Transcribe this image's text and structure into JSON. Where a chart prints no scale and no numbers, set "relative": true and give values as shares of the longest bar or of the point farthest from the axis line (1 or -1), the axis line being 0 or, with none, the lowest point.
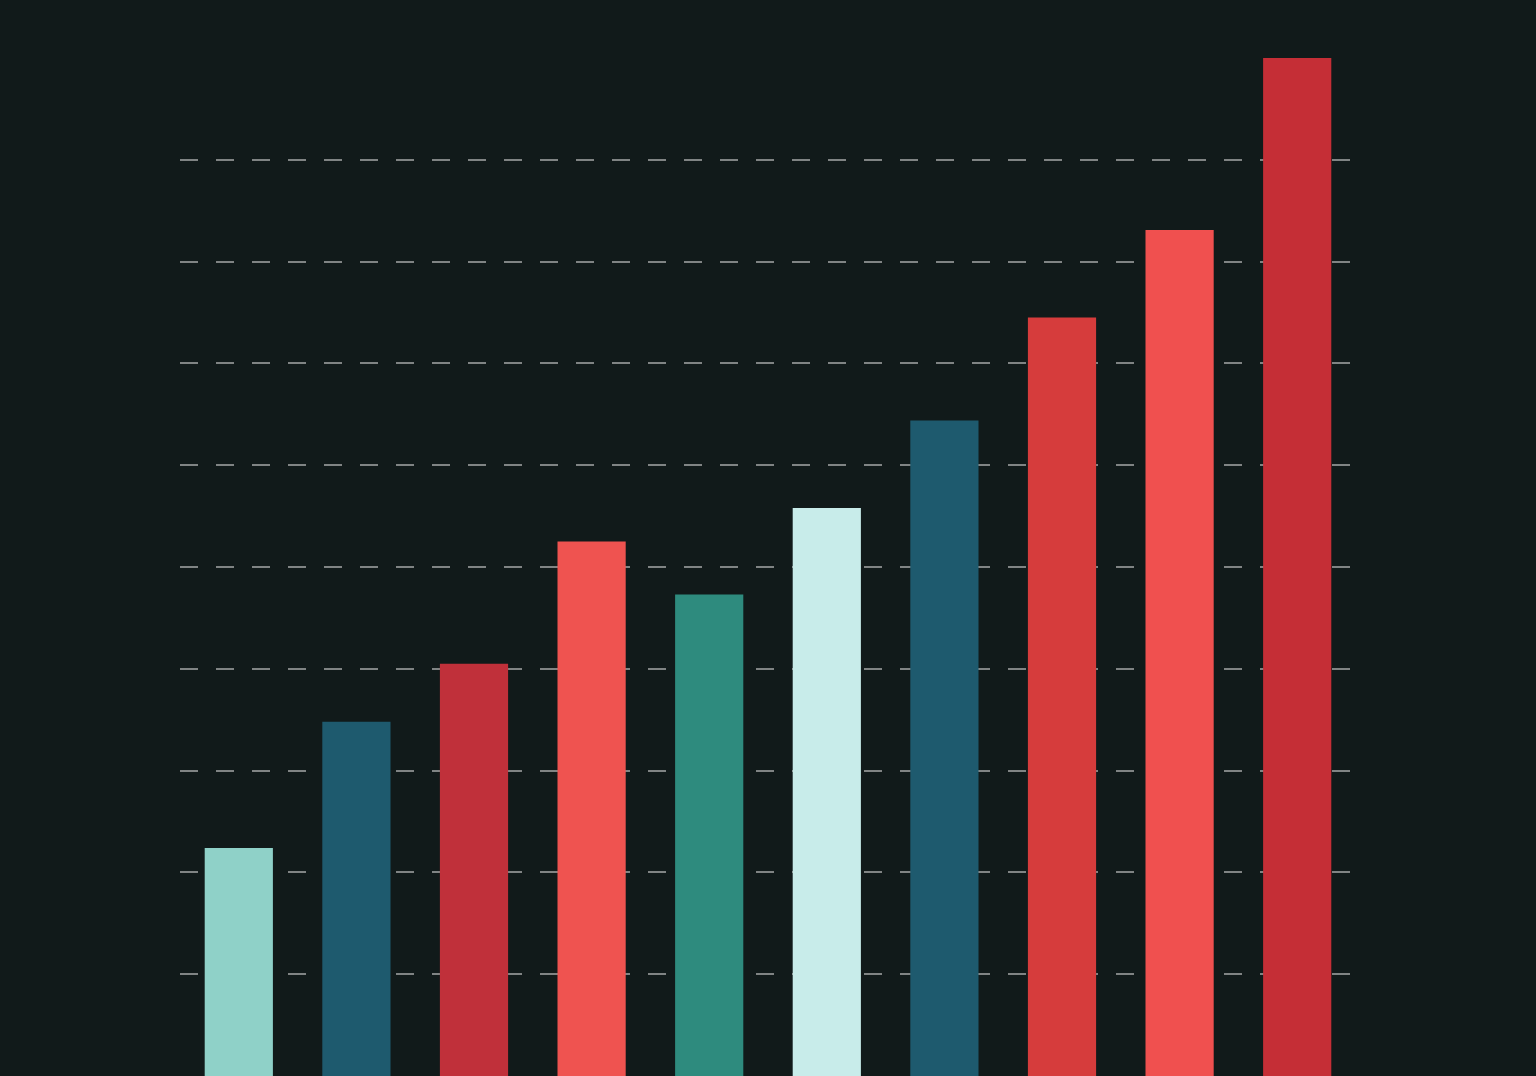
{
  "chart_data": {
    "type": "bar",
    "relative": true,
    "categories": [
      null,
      null,
      null,
      null,
      null,
      null,
      null,
      null,
      null,
      null
    ],
    "values": [
      0.224,
      0.348,
      0.405,
      0.525,
      0.473,
      0.558,
      0.644,
      0.745,
      0.831,
      1
    ],
    "colors": [
      "#8fd1c8",
      "#1e5a6e",
      "#c0303a",
      "#ef5350",
      "#2e8b7e",
      "#c8ecea",
      "#1e5a6e",
      "#d63c3c",
      "#f0504f",
      "#c52e36"
    ],
    "grid": "y"
  }
}
